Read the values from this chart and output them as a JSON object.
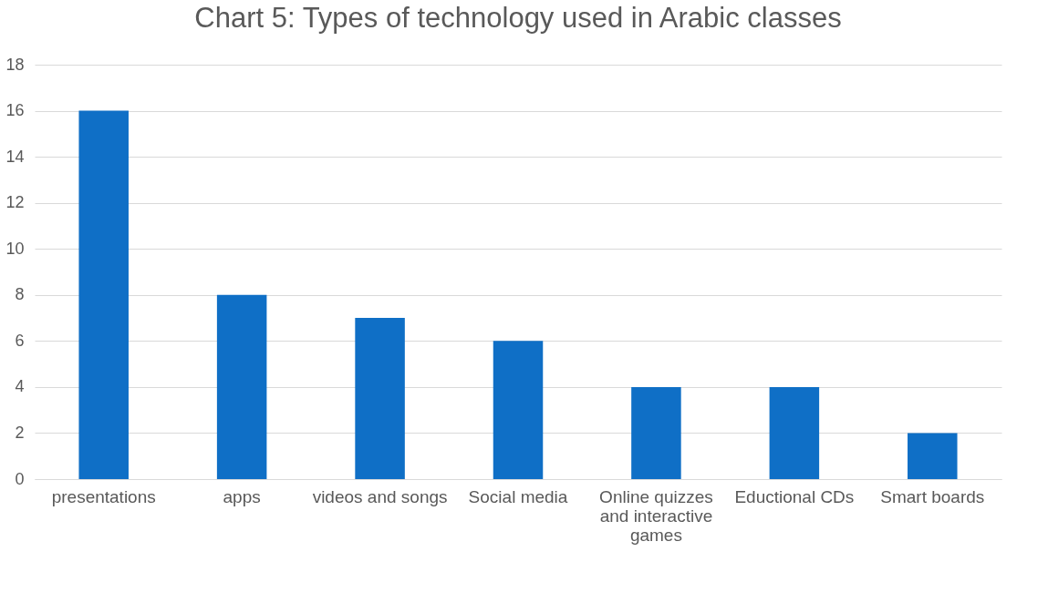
{
  "chart_data": {
    "type": "bar",
    "title": "Chart 5: Types of technology used in Arabic classes",
    "categories": [
      "presentations",
      "apps",
      "videos and songs",
      "Social media",
      "Online quizzes and interactive games",
      "Eductional CDs",
      "Smart boards"
    ],
    "values": [
      16,
      8,
      7,
      6,
      4,
      4,
      2
    ],
    "color": "#0f6fc6",
    "ylim": [
      0,
      18
    ],
    "yticks": [
      0,
      2,
      4,
      6,
      8,
      10,
      12,
      14,
      16,
      18
    ],
    "grid": "y"
  }
}
